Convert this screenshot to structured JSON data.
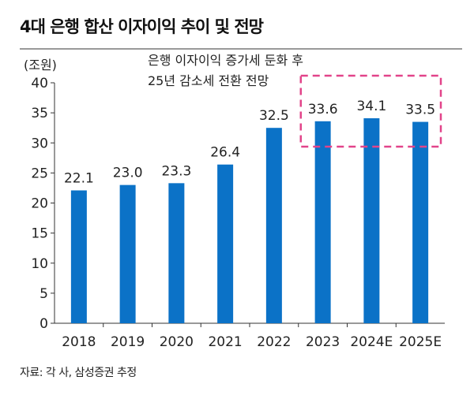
{
  "title": "4대 은행 합산 이자이익 추이 및 전망",
  "source": "자료: 각 사, 삼성증권 추정",
  "chart_data": {
    "type": "bar",
    "categories": [
      "2018",
      "2019",
      "2020",
      "2021",
      "2022",
      "2023",
      "2024E",
      "2025E"
    ],
    "values": [
      22.1,
      23.0,
      23.3,
      26.4,
      32.5,
      33.6,
      34.1,
      33.5
    ],
    "value_labels": [
      "22.1",
      "23.0",
      "23.3",
      "26.4",
      "32.5",
      "33.6",
      "34.1",
      "33.5"
    ],
    "ylabel": "(조원)",
    "ylim": [
      0,
      40
    ],
    "yticks": [
      0,
      5,
      10,
      15,
      20,
      25,
      30,
      35,
      40
    ],
    "grid": false,
    "bar_color": "#0b72c7",
    "annotation": {
      "lines": [
        "은행 이자이익 증가세 둔화 후",
        "25년 감소세 전환 전망"
      ],
      "highlight_categories": [
        "2023",
        "2024E",
        "2025E"
      ],
      "highlight_color": "#e2448a"
    }
  }
}
